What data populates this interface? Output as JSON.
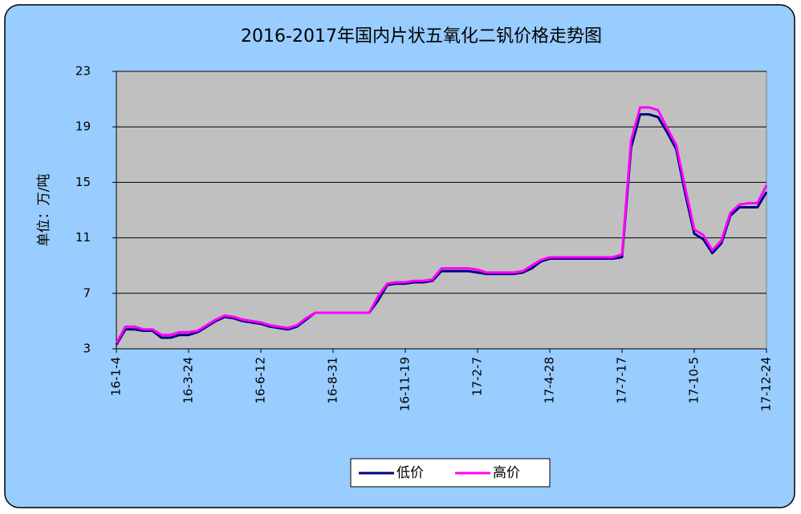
{
  "chart_data": {
    "type": "line",
    "title": "2016-2017年国内片状五氧化二钒价格走势图",
    "y_label": "单位：万/吨",
    "categories": [
      "16-1-4",
      null,
      null,
      null,
      null,
      null,
      null,
      null,
      "16-3-24",
      null,
      null,
      null,
      null,
      null,
      null,
      null,
      "16-6-12",
      null,
      null,
      null,
      null,
      null,
      null,
      null,
      "16-8-31",
      null,
      null,
      null,
      null,
      null,
      null,
      null,
      "16-11-19",
      null,
      null,
      null,
      null,
      null,
      null,
      null,
      "17-2-7",
      null,
      null,
      null,
      null,
      null,
      null,
      null,
      "17-4-28",
      null,
      null,
      null,
      null,
      null,
      null,
      null,
      "17-7-17",
      null,
      null,
      null,
      null,
      null,
      null,
      null,
      "17-10-5",
      null,
      null,
      null,
      null,
      null,
      null,
      null,
      "17-12-24"
    ],
    "series": [
      {
        "name": "低价",
        "color": "#000080",
        "values": [
          3.3,
          4.4,
          4.4,
          4.3,
          4.3,
          3.8,
          3.8,
          4.0,
          4.0,
          4.2,
          4.6,
          5.0,
          5.3,
          5.2,
          5.0,
          4.9,
          4.8,
          4.6,
          4.5,
          4.4,
          4.6,
          5.1,
          5.6,
          5.6,
          5.6,
          5.6,
          5.6,
          5.6,
          5.6,
          6.5,
          7.6,
          7.7,
          7.7,
          7.8,
          7.8,
          7.9,
          8.6,
          8.6,
          8.6,
          8.6,
          8.5,
          8.4,
          8.4,
          8.4,
          8.4,
          8.5,
          8.8,
          9.3,
          9.5,
          9.5,
          9.5,
          9.5,
          9.5,
          9.5,
          9.5,
          9.5,
          9.6,
          17.5,
          19.9,
          19.9,
          19.7,
          18.6,
          17.4,
          14.2,
          11.3,
          10.9,
          9.9,
          10.6,
          12.6,
          13.2,
          13.2,
          13.2,
          14.3
        ]
      },
      {
        "name": "高价",
        "color": "#ff00ff",
        "values": [
          3.4,
          4.6,
          4.6,
          4.4,
          4.4,
          4.0,
          4.0,
          4.2,
          4.2,
          4.3,
          4.7,
          5.1,
          5.4,
          5.3,
          5.1,
          5.0,
          4.9,
          4.7,
          4.6,
          4.5,
          4.7,
          5.2,
          5.6,
          5.6,
          5.6,
          5.6,
          5.6,
          5.6,
          5.6,
          6.8,
          7.7,
          7.8,
          7.8,
          7.9,
          7.9,
          8.0,
          8.8,
          8.8,
          8.8,
          8.8,
          8.7,
          8.5,
          8.5,
          8.5,
          8.5,
          8.6,
          9.0,
          9.4,
          9.6,
          9.6,
          9.6,
          9.6,
          9.6,
          9.6,
          9.6,
          9.6,
          9.8,
          18.0,
          20.4,
          20.4,
          20.2,
          18.9,
          17.7,
          14.6,
          11.6,
          11.2,
          10.1,
          10.8,
          12.8,
          13.4,
          13.5,
          13.5,
          14.8
        ]
      }
    ],
    "ylim": [
      3,
      23
    ],
    "yticks": [
      3,
      7,
      11,
      15,
      19,
      23
    ],
    "grid": true,
    "legend": "bottom"
  }
}
